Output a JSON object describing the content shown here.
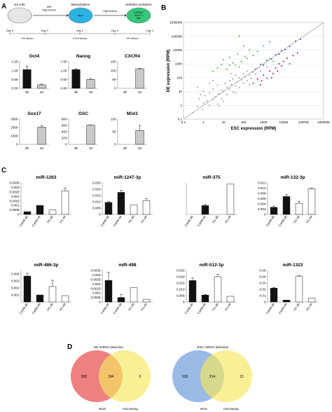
{
  "panels": {
    "A": "A",
    "B": "B",
    "C": "C",
    "D": "D"
  },
  "colors": {
    "bar_dark": "#111111",
    "bar_grey": "#c9c9c9",
    "scatter_grey": "#9c9c9c",
    "scatter_green": "#3bb33b",
    "scatter_red": "#b21e1e",
    "scatter_blue": "#2f55b8",
    "venn_red": "#ea6a6a",
    "venn_yellow": "#f6e85c",
    "venn_blue": "#8fb2e2",
    "stage_es": "#e6e6e6",
    "stage_meso": "#2bb3e2",
    "stage_de": "#35c77a"
  },
  "pathway": {
    "stages": [
      {
        "label": "ES cells"
      },
      {
        "label": "Mesendoderm"
      },
      {
        "label": "Definitive endoderm"
      }
    ],
    "inner_labels": [
      "",
      "Mix+",
      "CXCR4+\nSox17+\nGsc"
    ],
    "arrow_labels": [
      "Wnt\nHigh Activin",
      "High Activin"
    ],
    "days": [
      "Day 0",
      "Day 1",
      "Day 2",
      "Day 3",
      "Day 4"
    ],
    "serum": [
      "0% serum",
      "0.2% serum",
      "2% serum"
    ]
  },
  "chart_data": [
    {
      "type": "bar",
      "title": "Oct4",
      "categories": [
        "d0",
        "d4"
      ],
      "values": [
        1.05,
        0.2
      ],
      "errors": [
        0.2,
        0.04
      ],
      "fills": [
        "dark",
        "grey"
      ],
      "ylim": [
        0,
        1.5
      ],
      "yticks": [
        "0.00",
        "0.50",
        "1.00",
        "1.50"
      ]
    },
    {
      "type": "bar",
      "title": "Nanog",
      "categories": [
        "d0",
        "d4"
      ],
      "values": [
        1.05,
        0.5
      ],
      "errors": [
        0.05,
        0.05
      ],
      "fills": [
        "dark",
        "grey"
      ],
      "ylim": [
        0,
        1.5
      ],
      "yticks": [
        "0.00",
        "0.50",
        "1.00",
        "1.50"
      ]
    },
    {
      "type": "bar",
      "title": "CXCR4",
      "categories": [
        "d0",
        "d4"
      ],
      "values": [
        0,
        110
      ],
      "errors": [
        0,
        3
      ],
      "fills": [
        "dark",
        "grey"
      ],
      "ylim": [
        0,
        150
      ],
      "yticks": [
        "0",
        "50",
        "100",
        "150"
      ]
    },
    {
      "type": "bar",
      "title": "Sox17",
      "categories": [
        "d0",
        "d4"
      ],
      "values": [
        0,
        2050
      ],
      "errors": [
        0,
        180
      ],
      "fills": [
        "dark",
        "grey"
      ],
      "ylim": [
        0,
        3000
      ],
      "yticks": [
        "0",
        "1000",
        "2000",
        "3000"
      ]
    },
    {
      "type": "bar",
      "title": "GSC",
      "categories": [
        "d0",
        "d4"
      ],
      "values": [
        0,
        610
      ],
      "errors": [
        0,
        8
      ],
      "fills": [
        "dark",
        "grey"
      ],
      "ylim": [
        0,
        800
      ],
      "yticks": [
        "0",
        "200",
        "400",
        "600",
        "800"
      ]
    },
    {
      "type": "bar",
      "title": "Mixl1",
      "categories": [
        "d0",
        "d4"
      ],
      "values": [
        0,
        55
      ],
      "errors": [
        0,
        20
      ],
      "fills": [
        "dark",
        "grey"
      ],
      "ylim": [
        0,
        100
      ],
      "yticks": [
        "0",
        "50",
        "100"
      ]
    },
    {
      "type": "scatter",
      "xlabel": "ESC expression (RPM)",
      "ylabel": "DE expression (RPM)",
      "xscale": "log",
      "yscale": "log",
      "xlim": [
        0.1,
        1000000
      ],
      "ylim": [
        0.1,
        1000000
      ],
      "xticks": [
        "0.1",
        "1",
        "10",
        "100",
        "1000",
        "10000",
        "100000",
        "1000000"
      ],
      "yticks": [
        "0.1",
        "1",
        "10",
        "100",
        "1000",
        "10000",
        "100000",
        "1000000"
      ],
      "series": [
        {
          "color": "grey",
          "points": [
            [
              0.3,
              0.3
            ],
            [
              0.5,
              0.8
            ],
            [
              0.6,
              3
            ],
            [
              0.9,
              0.5
            ],
            [
              1,
              1.5
            ],
            [
              1.2,
              5
            ],
            [
              1.5,
              2
            ],
            [
              2,
              1
            ],
            [
              2,
              8
            ],
            [
              3,
              2.5
            ],
            [
              3,
              15
            ],
            [
              4,
              4
            ],
            [
              5,
              1.2
            ],
            [
              5,
              30
            ],
            [
              6,
              7
            ],
            [
              8,
              3
            ],
            [
              8,
              12
            ],
            [
              10,
              10
            ],
            [
              12,
              40
            ],
            [
              15,
              6
            ],
            [
              15,
              20
            ],
            [
              20,
              15
            ],
            [
              20,
              60
            ],
            [
              25,
              30
            ],
            [
              30,
              9
            ],
            [
              30,
              80
            ],
            [
              40,
              25
            ],
            [
              40,
              150
            ],
            [
              50,
              50
            ],
            [
              60,
              20
            ],
            [
              60,
              100
            ],
            [
              80,
              70
            ],
            [
              100,
              40
            ],
            [
              100,
              200
            ],
            [
              120,
              120
            ],
            [
              150,
              60
            ],
            [
              150,
              300
            ],
            [
              200,
              150
            ],
            [
              250,
              90
            ],
            [
              300,
              250
            ],
            [
              400,
              180
            ],
            [
              500,
              500
            ],
            [
              700,
              300
            ],
            [
              1000,
              900
            ],
            [
              1500,
              600
            ],
            [
              2000,
              2500
            ],
            [
              3000,
              1500
            ],
            [
              5000,
              5000
            ],
            [
              2,
              40
            ],
            [
              1,
              10
            ],
            [
              10,
              2
            ],
            [
              40,
              8
            ],
            [
              0.7,
              6
            ],
            [
              6,
              0.9
            ],
            [
              25,
              200
            ],
            [
              3,
              60
            ],
            [
              0.5,
              20
            ],
            [
              200,
              30
            ]
          ]
        },
        {
          "color": "green",
          "points": [
            [
              3,
              300
            ],
            [
              5,
              500
            ],
            [
              8,
              900
            ],
            [
              10,
              2000
            ],
            [
              15,
              400
            ],
            [
              20,
              3000
            ],
            [
              30,
              1200
            ],
            [
              40,
              800
            ],
            [
              50,
              5000
            ],
            [
              60,
              600
            ],
            [
              80,
              1500
            ],
            [
              100,
              20000
            ],
            [
              120,
              3500
            ],
            [
              150,
              2500
            ],
            [
              200,
              10000
            ],
            [
              300,
              4000
            ],
            [
              500,
              8000
            ],
            [
              1000,
              20000
            ],
            [
              2000,
              40000
            ],
            [
              60,
              100000
            ],
            [
              20,
              800
            ]
          ]
        },
        {
          "color": "red",
          "points": [
            [
              300,
              40
            ],
            [
              500,
              80
            ],
            [
              800,
              60
            ],
            [
              1000,
              150
            ],
            [
              1500,
              90
            ],
            [
              2000,
              300
            ],
            [
              3000,
              200
            ],
            [
              4000,
              500
            ],
            [
              5000,
              300
            ],
            [
              6000,
              1000
            ],
            [
              8000,
              700
            ],
            [
              10000,
              1500
            ],
            [
              15000,
              2500
            ],
            [
              20000,
              1000
            ],
            [
              30000,
              4000
            ],
            [
              50000,
              6000
            ],
            [
              700,
              30
            ],
            [
              2500,
              100
            ]
          ]
        },
        {
          "color": "blue",
          "points": [
            [
              400,
              400
            ],
            [
              700,
              900
            ],
            [
              1000,
              800
            ],
            [
              1500,
              1800
            ],
            [
              2500,
              2200
            ],
            [
              4000,
              4500
            ],
            [
              6000,
              5000
            ],
            [
              8000,
              9000
            ],
            [
              12000,
              11000
            ],
            [
              20000,
              18000
            ],
            [
              40000,
              45000
            ],
            [
              70000,
              60000
            ]
          ]
        }
      ]
    },
    {
      "type": "bar",
      "title": "miR-1263",
      "categories": [
        "Cyt49-d0",
        "Cyt49-d4",
        "H1-d0",
        "H1-d4"
      ],
      "values": [
        0.0003,
        0.001,
        0.0005,
        0.0026
      ],
      "errors": [
        0,
        0,
        0,
        0.0003
      ],
      "fills": [
        "dark",
        "dark",
        "white",
        "white"
      ],
      "ylim": [
        0,
        0.0035
      ],
      "yticks": [
        "0",
        "0.0005",
        "0.001",
        "0.0015",
        "0.002",
        "0.0025",
        "0.003",
        "0.0035"
      ]
    },
    {
      "type": "bar",
      "title": "miR-1247-3p",
      "categories": [
        "Cyt49-d0",
        "Cyt49-d4",
        "H1-d0",
        "H1-d4"
      ],
      "values": [
        0.0095,
        0.0175,
        0.0075,
        0.011
      ],
      "errors": [
        0.0006,
        0.0018,
        0,
        0.0015
      ],
      "fills": [
        "dark",
        "dark",
        "white",
        "white"
      ],
      "ylim": [
        0,
        0.025
      ],
      "yticks": [
        "0",
        "0.005",
        "0.010",
        "0.015",
        "0.020",
        "0.025"
      ]
    },
    {
      "type": "bar",
      "title": "miR-375",
      "categories": [
        "Cyt49-d0",
        "Cyt49-d4",
        "H1-d0",
        "H1-d4"
      ],
      "values": [
        0,
        0.07,
        0,
        0.24
      ],
      "errors": [
        0,
        0.01,
        0,
        0
      ],
      "fills": [
        "dark",
        "dark",
        "white",
        "white"
      ],
      "ylim": [
        0,
        0.25
      ],
      "yticks": []
    },
    {
      "type": "bar",
      "title": "miR-132-3p",
      "categories": [
        "Cyt49-d0",
        "Cyt49-d4",
        "H1-d0",
        "H1-d4"
      ],
      "values": [
        0.0027,
        0.0068,
        0.0042,
        0.0098
      ],
      "errors": [
        0.0005,
        0.0007,
        0.0008,
        0.0003
      ],
      "fills": [
        "dark",
        "dark",
        "white",
        "white"
      ],
      "ylim": [
        0,
        0.012
      ],
      "yticks": [
        "0",
        "0.002",
        "0.004",
        "0.006",
        "0.008",
        "0.010",
        "0.012"
      ]
    },
    {
      "type": "bar",
      "title": "miR-486-3p",
      "categories": [
        "Cyt49-d0",
        "Cyt49-d4",
        "H1-d0",
        "H1-d4"
      ],
      "values": [
        0.0037,
        0.001,
        0.0022,
        0.0009
      ],
      "errors": [
        0.0004,
        0,
        0.0009,
        0
      ],
      "fills": [
        "dark",
        "dark",
        "white",
        "white"
      ],
      "ylim": [
        0,
        0.0045
      ],
      "yticks": [
        "0.001",
        "0.002",
        "0.003",
        "0.004"
      ]
    },
    {
      "type": "bar",
      "title": "miR-498",
      "categories": [
        "Cyt49-d0",
        "Cyt49-d4",
        "H1-d0",
        "H1-d4"
      ],
      "values": [
        0.0024,
        0.0005,
        0.0016,
        0.0003
      ],
      "errors": [
        0.0009,
        0.0003,
        0,
        0
      ],
      "fills": [
        "dark",
        "dark",
        "white",
        "white"
      ],
      "ylim": [
        0,
        0.0035
      ],
      "yticks": [
        "0",
        "0.0005",
        "0.001",
        "0.0015",
        "0.002",
        "0.0025",
        "0.003",
        "0.0035"
      ]
    },
    {
      "type": "bar",
      "title": "miR-512-3p",
      "categories": [
        "Cyt49-d0",
        "Cyt49-d4",
        "H1-d0",
        "H1-d4"
      ],
      "values": [
        0.017,
        0.0055,
        0.02,
        0.0045
      ],
      "errors": [
        0.002,
        0.0005,
        0.002,
        0
      ],
      "fills": [
        "dark",
        "dark",
        "white",
        "white"
      ],
      "ylim": [
        0,
        0.025
      ],
      "yticks": [
        "0",
        "0.005",
        "0.010",
        "0.015",
        "0.020",
        "0.025"
      ]
    },
    {
      "type": "bar",
      "title": "miR-1323",
      "categories": [
        "Cyt49-d0",
        "Cyt49-d4",
        "H1-d0",
        "H1-d4"
      ],
      "values": [
        0.022,
        0.003,
        0.041,
        0.006
      ],
      "errors": [
        0.001,
        0,
        0.001,
        0
      ],
      "fills": [
        "dark",
        "dark",
        "white",
        "white"
      ],
      "ylim": [
        0,
        0.05
      ],
      "yticks": [
        "0",
        "0.01",
        "0.02",
        "0.03",
        "0.04",
        "0.05"
      ]
    }
  ],
  "venn": [
    {
      "title": "DE miRNA detection",
      "left_only": "550",
      "both": "194",
      "right_only": "6",
      "left_label": "NGS",
      "right_label": "microarray"
    },
    {
      "title": "ESC miRNA detection",
      "left_only": "533",
      "both": "214",
      "right_only": "15",
      "left_label": "NGS",
      "right_label": "microarray"
    }
  ]
}
